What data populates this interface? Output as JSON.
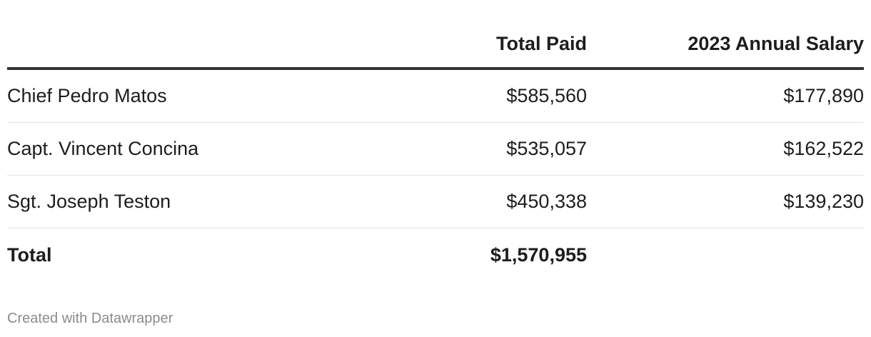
{
  "chart_data": {
    "type": "table",
    "columns": [
      "",
      "Total Paid",
      "2023 Annual Salary"
    ],
    "rows": [
      {
        "name": "Chief Pedro Matos",
        "total_paid": "$585,560",
        "salary": "$177,890"
      },
      {
        "name": "Capt. Vincent Concina",
        "total_paid": "$535,057",
        "salary": "$162,522"
      },
      {
        "name": "Sgt. Joseph Teston",
        "total_paid": "$450,338",
        "salary": "$139,230"
      }
    ],
    "total": {
      "label": "Total",
      "total_paid": "$1,570,955",
      "salary": ""
    }
  },
  "footer": {
    "credit": "Created with Datawrapper"
  },
  "colors": {
    "text": "#1d1d1d",
    "header_rule": "#333333",
    "row_rule": "#e4e4e4",
    "footer_text": "#8c8c8c"
  }
}
